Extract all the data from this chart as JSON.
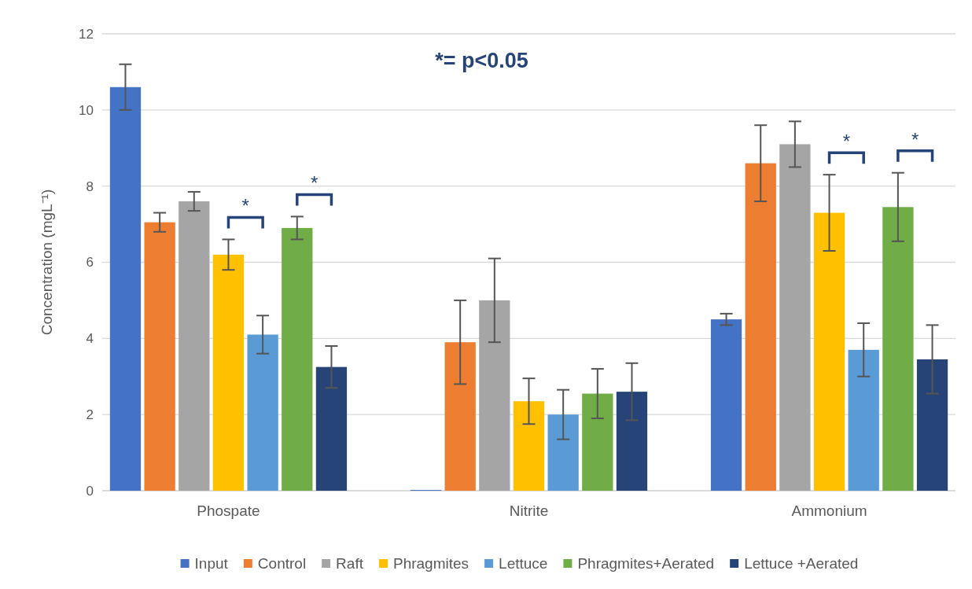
{
  "chart_data": {
    "type": "bar",
    "categories": [
      "Phospate",
      "Nitrite",
      "Ammonium"
    ],
    "ylabel": "Concentration (mgL⁻¹)",
    "ylim": [
      0,
      12
    ],
    "yticks": [
      0,
      2,
      4,
      6,
      8,
      10,
      12
    ],
    "grid": "y",
    "legend": "bottom",
    "series": [
      {
        "name": "Input",
        "color": "#4472c4",
        "values": [
          10.6,
          0.02,
          4.5
        ],
        "errors": [
          0.6,
          null,
          0.15
        ]
      },
      {
        "name": "Control",
        "color": "#ed7d31",
        "values": [
          7.05,
          3.9,
          8.6
        ],
        "errors": [
          0.25,
          1.1,
          1.0
        ]
      },
      {
        "name": "Raft",
        "color": "#a5a5a5",
        "values": [
          7.6,
          5.0,
          9.1
        ],
        "errors": [
          0.25,
          1.1,
          0.6
        ]
      },
      {
        "name": "Phragmites",
        "color": "#ffc000",
        "values": [
          6.2,
          2.35,
          7.3
        ],
        "errors": [
          0.4,
          0.6,
          1.0
        ]
      },
      {
        "name": "Lettuce",
        "color": "#5b9bd5",
        "values": [
          4.1,
          2.0,
          3.7
        ],
        "errors": [
          0.5,
          0.65,
          0.7
        ]
      },
      {
        "name": "Phragmites+Aerated",
        "color": "#70ad47",
        "values": [
          6.9,
          2.55,
          7.45
        ],
        "errors": [
          0.3,
          0.65,
          0.9
        ]
      },
      {
        "name": "Lettuce +Aerated",
        "color": "#264478",
        "values": [
          3.25,
          2.6,
          3.45
        ],
        "errors": [
          0.55,
          0.75,
          0.9
        ]
      }
    ],
    "annotations": [
      "*= p<0.05",
      "*",
      "*",
      "*",
      "*"
    ]
  }
}
